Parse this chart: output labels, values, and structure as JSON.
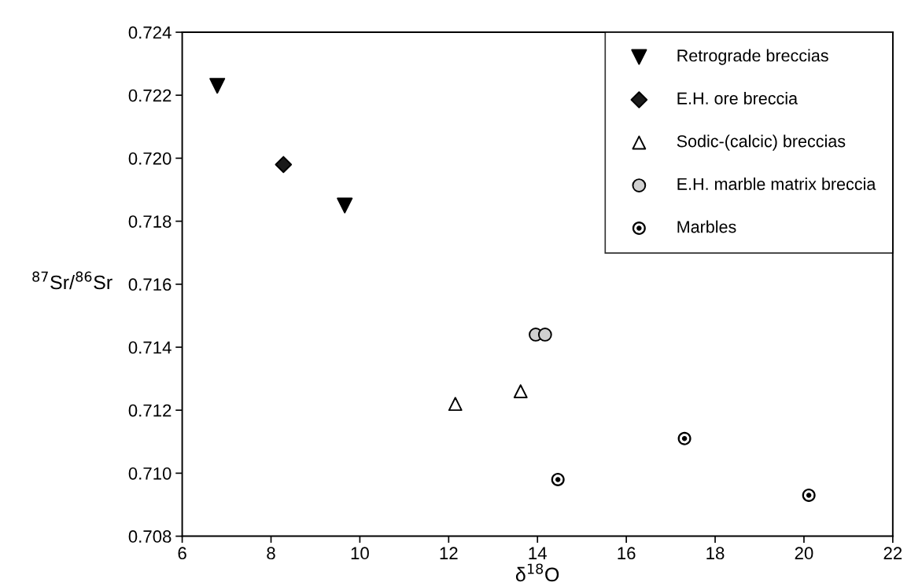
{
  "chart_data": {
    "type": "scatter",
    "xlabel": "δ$^{18}$O",
    "ylabel": "$^{87}$Sr/$^{86}$Sr",
    "xlim": [
      6,
      22
    ],
    "xticks": [
      6,
      8,
      10,
      12,
      14,
      16,
      18,
      20,
      22
    ],
    "ylim": [
      0.708,
      0.724
    ],
    "yticks": [
      {
        "value": 0.708,
        "label": "0.708"
      },
      {
        "value": 0.71,
        "label": "0.710"
      },
      {
        "value": 0.712,
        "label": "0.712"
      },
      {
        "value": 0.714,
        "label": "0.714"
      },
      {
        "value": 0.716,
        "label": "0.716"
      },
      {
        "value": 0.718,
        "label": "0.718"
      },
      {
        "value": 0.72,
        "label": "0.720"
      },
      {
        "value": 0.722,
        "label": "0.722"
      },
      {
        "value": 0.724,
        "label": "0.724"
      }
    ],
    "grid": false,
    "legend": "top right",
    "series": [
      {
        "name": "Retrograde breccias",
        "color": "#000000",
        "marker": "triangle_down",
        "x": [
          6.79,
          9.66
        ],
        "values": [
          0.7223,
          0.7185
        ]
      },
      {
        "name": "E.H. ore breccia",
        "color": "#1a1a1a",
        "marker": "diamond",
        "x": [
          8.28
        ],
        "values": [
          0.7198
        ]
      },
      {
        "name": "Sodic-(calcic) breccias",
        "color": "#ffffff",
        "marker": "triangle",
        "x": [
          12.15,
          13.62
        ],
        "values": [
          0.7122,
          0.7126
        ]
      },
      {
        "name": "E.H. marble matrix breccia",
        "color": "#d0d0d0",
        "marker": "circle",
        "x": [
          13.96,
          14.17
        ],
        "values": [
          0.7144,
          0.7144
        ]
      },
      {
        "name": "Marbles",
        "color": "#000000",
        "marker": "circle_dot",
        "x": [
          14.46,
          17.31,
          20.11
        ],
        "values": [
          0.7098,
          0.7111,
          0.7093
        ]
      }
    ]
  }
}
